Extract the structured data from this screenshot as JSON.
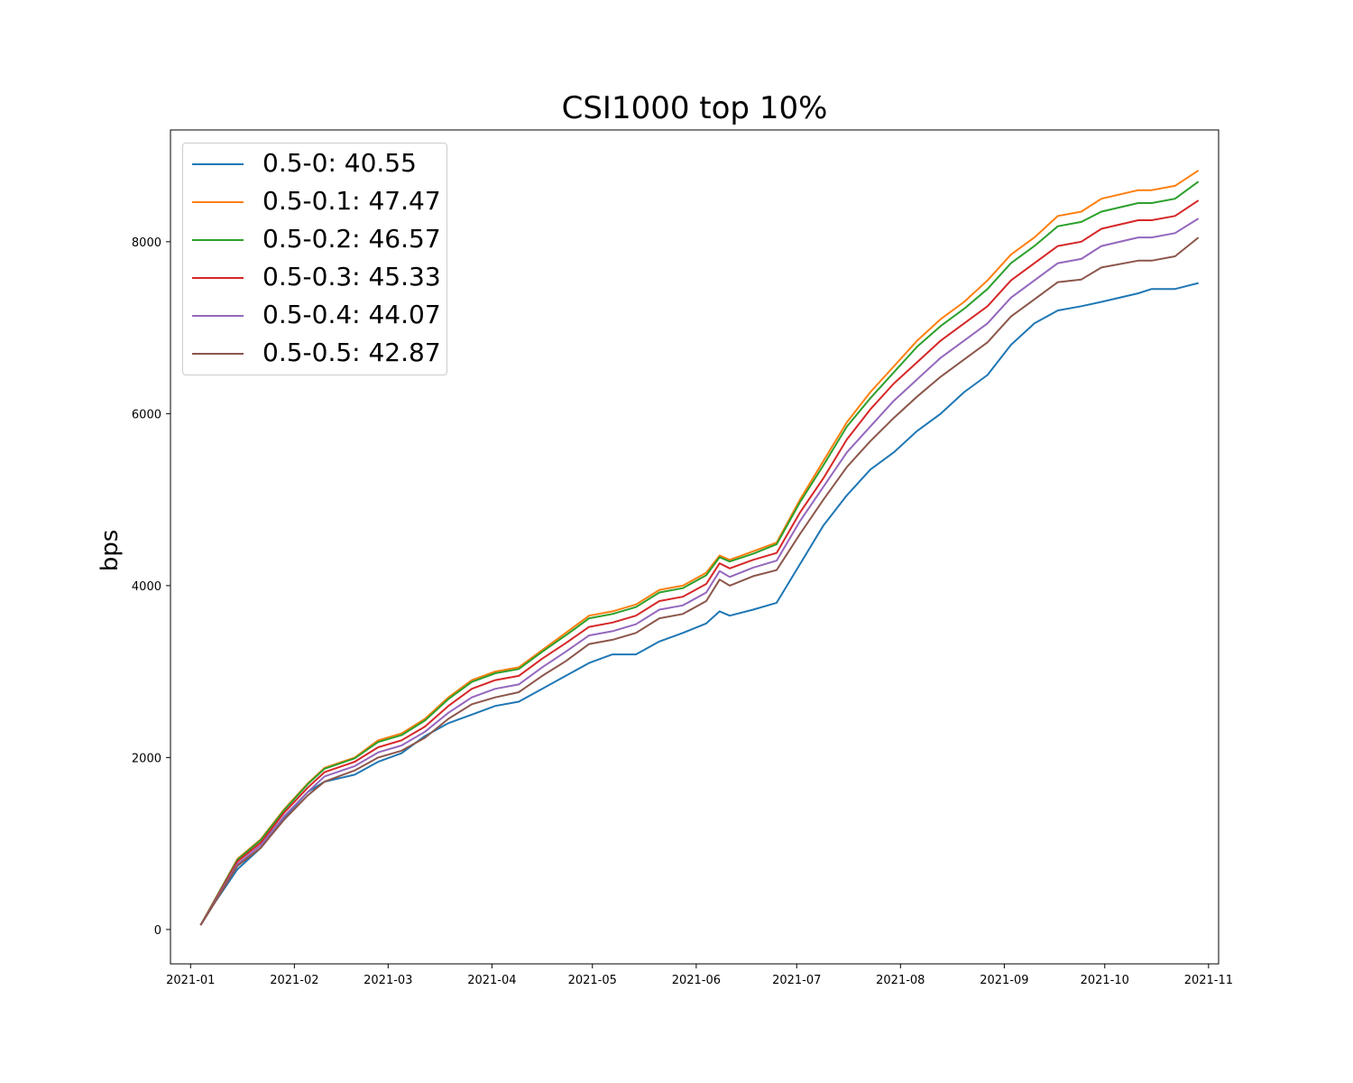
{
  "chart_data": {
    "type": "line",
    "title": "CSI1000 top 10%",
    "xlabel": "",
    "ylabel": "bps",
    "xlim": [
      "2020-12-26",
      "2021-11-04"
    ],
    "ylim": [
      -400,
      9300
    ],
    "grid": false,
    "legend_position": "top-left",
    "x_ticks": [
      "2021-01",
      "2021-02",
      "2021-03",
      "2021-04",
      "2021-05",
      "2021-06",
      "2021-07",
      "2021-08",
      "2021-09",
      "2021-10",
      "2021-11"
    ],
    "y_ticks": [
      "0",
      "2000",
      "4000",
      "6000",
      "8000"
    ],
    "x": [
      "2021-01-04",
      "2021-01-08",
      "2021-01-15",
      "2021-01-22",
      "2021-01-29",
      "2021-02-05",
      "2021-02-10",
      "2021-02-19",
      "2021-02-26",
      "2021-03-05",
      "2021-03-12",
      "2021-03-19",
      "2021-03-26",
      "2021-04-02",
      "2021-04-09",
      "2021-04-16",
      "2021-04-23",
      "2021-04-30",
      "2021-05-07",
      "2021-05-14",
      "2021-05-21",
      "2021-05-28",
      "2021-06-04",
      "2021-06-08",
      "2021-06-11",
      "2021-06-18",
      "2021-06-25",
      "2021-07-02",
      "2021-07-09",
      "2021-07-16",
      "2021-07-23",
      "2021-07-30",
      "2021-08-06",
      "2021-08-13",
      "2021-08-20",
      "2021-08-27",
      "2021-09-03",
      "2021-09-10",
      "2021-09-17",
      "2021-09-24",
      "2021-09-30",
      "2021-10-11",
      "2021-10-15",
      "2021-10-22",
      "2021-10-29"
    ],
    "series": [
      {
        "name": "0.5-0: 40.55",
        "color": "#1f77b4",
        "values": [
          50,
          300,
          700,
          950,
          1300,
          1600,
          1720,
          1800,
          1950,
          2050,
          2250,
          2400,
          2500,
          2600,
          2650,
          2800,
          2950,
          3100,
          3200,
          3200,
          3350,
          3450,
          3560,
          3700,
          3650,
          3720,
          3800,
          4250,
          4700,
          5050,
          5350,
          5550,
          5800,
          6000,
          6250,
          6450,
          6800,
          7050,
          7200,
          7250,
          7300,
          7400,
          7450,
          7450,
          7520
        ]
      },
      {
        "name": "0.5-0.1: 47.47",
        "color": "#ff7f0e",
        "values": [
          50,
          330,
          820,
          1050,
          1400,
          1700,
          1880,
          2000,
          2200,
          2280,
          2450,
          2700,
          2900,
          3000,
          3050,
          3250,
          3450,
          3650,
          3700,
          3780,
          3950,
          4000,
          4150,
          4350,
          4300,
          4400,
          4500,
          5000,
          5450,
          5900,
          6250,
          6550,
          6850,
          7100,
          7300,
          7550,
          7850,
          8050,
          8300,
          8350,
          8500,
          8600,
          8600,
          8650,
          8830
        ]
      },
      {
        "name": "0.5-0.2: 46.57",
        "color": "#2ca02c",
        "values": [
          50,
          330,
          810,
          1040,
          1390,
          1690,
          1870,
          1990,
          2180,
          2260,
          2430,
          2680,
          2880,
          2980,
          3030,
          3230,
          3420,
          3620,
          3670,
          3750,
          3920,
          3970,
          4120,
          4330,
          4280,
          4370,
          4480,
          4970,
          5400,
          5850,
          6180,
          6480,
          6780,
          7020,
          7220,
          7450,
          7750,
          7950,
          8180,
          8230,
          8350,
          8450,
          8450,
          8500,
          8700
        ]
      },
      {
        "name": "0.5-0.3: 45.33",
        "color": "#d62728",
        "values": [
          50,
          320,
          790,
          1010,
          1360,
          1650,
          1830,
          1950,
          2120,
          2200,
          2360,
          2600,
          2800,
          2900,
          2950,
          3150,
          3330,
          3520,
          3570,
          3650,
          3820,
          3870,
          4020,
          4260,
          4200,
          4300,
          4380,
          4850,
          5250,
          5700,
          6050,
          6350,
          6600,
          6850,
          7050,
          7250,
          7550,
          7750,
          7950,
          8000,
          8150,
          8250,
          8250,
          8300,
          8480
        ]
      },
      {
        "name": "0.5-0.4: 44.07",
        "color": "#9467bd",
        "values": [
          50,
          310,
          760,
          980,
          1320,
          1600,
          1780,
          1900,
          2060,
          2140,
          2300,
          2520,
          2700,
          2800,
          2850,
          3050,
          3230,
          3420,
          3470,
          3550,
          3720,
          3770,
          3920,
          4170,
          4100,
          4210,
          4290,
          4750,
          5150,
          5550,
          5850,
          6150,
          6400,
          6650,
          6850,
          7050,
          7350,
          7550,
          7750,
          7800,
          7950,
          8050,
          8050,
          8100,
          8270
        ]
      },
      {
        "name": "0.5-0.5: 42.87",
        "color": "#8c564b",
        "values": [
          50,
          300,
          740,
          950,
          1280,
          1560,
          1720,
          1850,
          2000,
          2080,
          2230,
          2450,
          2620,
          2700,
          2760,
          2950,
          3120,
          3320,
          3370,
          3450,
          3620,
          3670,
          3820,
          4070,
          4000,
          4110,
          4180,
          4600,
          5000,
          5380,
          5680,
          5950,
          6200,
          6430,
          6630,
          6830,
          7130,
          7330,
          7530,
          7560,
          7700,
          7780,
          7780,
          7830,
          8050
        ]
      }
    ]
  }
}
